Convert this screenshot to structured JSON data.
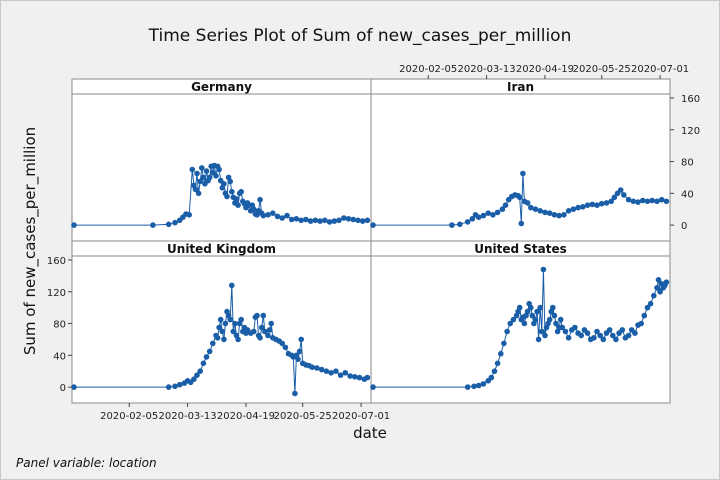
{
  "title": "Time Series Plot of Sum of new_cases_per_million",
  "footnote": "Panel variable: location",
  "colors": {
    "series": "#1a5ea8",
    "background": "#f0f0f0",
    "panel": "#ffffff",
    "strip": "#ffffff"
  },
  "chart_data": {
    "type": "line",
    "xlabel": "date",
    "ylabel": "Sum of new_cases_per_million",
    "x_range": [
      "2020-01-01",
      "2020-07-06"
    ],
    "x_ticks": [
      "2020-02-05",
      "2020-03-13",
      "2020-04-19",
      "2020-05-25",
      "2020-07-01"
    ],
    "ylim": [
      -20,
      165
    ],
    "y_ticks": [
      0,
      40,
      80,
      120,
      160
    ],
    "grid": false,
    "markers": true,
    "panels": [
      {
        "name": "Germany",
        "series": [
          [
            "2020-01-01",
            0
          ],
          [
            "2020-02-20",
            0
          ],
          [
            "2020-03-01",
            1
          ],
          [
            "2020-03-05",
            3
          ],
          [
            "2020-03-08",
            6
          ],
          [
            "2020-03-10",
            10
          ],
          [
            "2020-03-12",
            14
          ],
          [
            "2020-03-14",
            13
          ],
          [
            "2020-03-16",
            70
          ],
          [
            "2020-03-17",
            50
          ],
          [
            "2020-03-18",
            45
          ],
          [
            "2020-03-19",
            65
          ],
          [
            "2020-03-20",
            40
          ],
          [
            "2020-03-21",
            55
          ],
          [
            "2020-03-22",
            72
          ],
          [
            "2020-03-23",
            60
          ],
          [
            "2020-03-24",
            52
          ],
          [
            "2020-03-25",
            68
          ],
          [
            "2020-03-26",
            56
          ],
          [
            "2020-03-27",
            60
          ],
          [
            "2020-03-28",
            74
          ],
          [
            "2020-03-29",
            66
          ],
          [
            "2020-03-30",
            75
          ],
          [
            "2020-03-31",
            62
          ],
          [
            "2020-04-01",
            74
          ],
          [
            "2020-04-02",
            70
          ],
          [
            "2020-04-03",
            56
          ],
          [
            "2020-04-04",
            47
          ],
          [
            "2020-04-05",
            52
          ],
          [
            "2020-04-06",
            40
          ],
          [
            "2020-04-07",
            36
          ],
          [
            "2020-04-08",
            60
          ],
          [
            "2020-04-09",
            55
          ],
          [
            "2020-04-10",
            42
          ],
          [
            "2020-04-11",
            35
          ],
          [
            "2020-04-12",
            28
          ],
          [
            "2020-04-13",
            33
          ],
          [
            "2020-04-14",
            25
          ],
          [
            "2020-04-15",
            40
          ],
          [
            "2020-04-16",
            42
          ],
          [
            "2020-04-17",
            30
          ],
          [
            "2020-04-18",
            27
          ],
          [
            "2020-04-19",
            22
          ],
          [
            "2020-04-20",
            28
          ],
          [
            "2020-04-21",
            25
          ],
          [
            "2020-04-22",
            18
          ],
          [
            "2020-04-23",
            25
          ],
          [
            "2020-04-24",
            20
          ],
          [
            "2020-04-25",
            14
          ],
          [
            "2020-04-26",
            13
          ],
          [
            "2020-04-27",
            18
          ],
          [
            "2020-04-28",
            32
          ],
          [
            "2020-04-29",
            15
          ],
          [
            "2020-04-30",
            12
          ],
          [
            "2020-05-03",
            13
          ],
          [
            "2020-05-06",
            15
          ],
          [
            "2020-05-09",
            11
          ],
          [
            "2020-05-12",
            9
          ],
          [
            "2020-05-15",
            12
          ],
          [
            "2020-05-18",
            7
          ],
          [
            "2020-05-21",
            8
          ],
          [
            "2020-05-24",
            6
          ],
          [
            "2020-05-27",
            7
          ],
          [
            "2020-05-30",
            5
          ],
          [
            "2020-06-02",
            6
          ],
          [
            "2020-06-05",
            5
          ],
          [
            "2020-06-08",
            6
          ],
          [
            "2020-06-11",
            4
          ],
          [
            "2020-06-14",
            5
          ],
          [
            "2020-06-17",
            6
          ],
          [
            "2020-06-20",
            9
          ],
          [
            "2020-06-23",
            8
          ],
          [
            "2020-06-26",
            7
          ],
          [
            "2020-06-29",
            6
          ],
          [
            "2020-07-02",
            5
          ],
          [
            "2020-07-05",
            6
          ]
        ]
      },
      {
        "name": "Iran",
        "series": [
          [
            "2020-01-01",
            0
          ],
          [
            "2020-02-20",
            0
          ],
          [
            "2020-02-25",
            1
          ],
          [
            "2020-03-01",
            4
          ],
          [
            "2020-03-04",
            8
          ],
          [
            "2020-03-06",
            13
          ],
          [
            "2020-03-08",
            10
          ],
          [
            "2020-03-11",
            12
          ],
          [
            "2020-03-14",
            15
          ],
          [
            "2020-03-17",
            13
          ],
          [
            "2020-03-20",
            16
          ],
          [
            "2020-03-23",
            20
          ],
          [
            "2020-03-25",
            25
          ],
          [
            "2020-03-27",
            32
          ],
          [
            "2020-03-29",
            36
          ],
          [
            "2020-03-31",
            38
          ],
          [
            "2020-04-02",
            37
          ],
          [
            "2020-04-03",
            35
          ],
          [
            "2020-04-04",
            2
          ],
          [
            "2020-04-05",
            65
          ],
          [
            "2020-04-06",
            30
          ],
          [
            "2020-04-08",
            28
          ],
          [
            "2020-04-10",
            22
          ],
          [
            "2020-04-13",
            20
          ],
          [
            "2020-04-16",
            18
          ],
          [
            "2020-04-19",
            16
          ],
          [
            "2020-04-22",
            15
          ],
          [
            "2020-04-25",
            13
          ],
          [
            "2020-04-28",
            12
          ],
          [
            "2020-05-01",
            13
          ],
          [
            "2020-05-04",
            18
          ],
          [
            "2020-05-07",
            20
          ],
          [
            "2020-05-10",
            22
          ],
          [
            "2020-05-13",
            23
          ],
          [
            "2020-05-16",
            25
          ],
          [
            "2020-05-19",
            26
          ],
          [
            "2020-05-22",
            25
          ],
          [
            "2020-05-25",
            27
          ],
          [
            "2020-05-28",
            28
          ],
          [
            "2020-05-31",
            30
          ],
          [
            "2020-06-02",
            35
          ],
          [
            "2020-06-04",
            40
          ],
          [
            "2020-06-06",
            44
          ],
          [
            "2020-06-08",
            38
          ],
          [
            "2020-06-11",
            32
          ],
          [
            "2020-06-14",
            30
          ],
          [
            "2020-06-17",
            29
          ],
          [
            "2020-06-20",
            31
          ],
          [
            "2020-06-23",
            30
          ],
          [
            "2020-06-26",
            31
          ],
          [
            "2020-06-29",
            30
          ],
          [
            "2020-07-02",
            32
          ],
          [
            "2020-07-05",
            30
          ]
        ]
      },
      {
        "name": "United Kingdom",
        "series": [
          [
            "2020-01-01",
            0
          ],
          [
            "2020-03-01",
            0
          ],
          [
            "2020-03-05",
            1
          ],
          [
            "2020-03-08",
            3
          ],
          [
            "2020-03-11",
            5
          ],
          [
            "2020-03-13",
            8
          ],
          [
            "2020-03-15",
            6
          ],
          [
            "2020-03-17",
            10
          ],
          [
            "2020-03-19",
            15
          ],
          [
            "2020-03-21",
            20
          ],
          [
            "2020-03-23",
            30
          ],
          [
            "2020-03-25",
            38
          ],
          [
            "2020-03-27",
            45
          ],
          [
            "2020-03-29",
            55
          ],
          [
            "2020-03-31",
            65
          ],
          [
            "2020-04-01",
            62
          ],
          [
            "2020-04-02",
            75
          ],
          [
            "2020-04-03",
            85
          ],
          [
            "2020-04-04",
            70
          ],
          [
            "2020-04-05",
            60
          ],
          [
            "2020-04-06",
            80
          ],
          [
            "2020-04-07",
            95
          ],
          [
            "2020-04-08",
            90
          ],
          [
            "2020-04-09",
            85
          ],
          [
            "2020-04-10",
            128
          ],
          [
            "2020-04-11",
            70
          ],
          [
            "2020-04-12",
            80
          ],
          [
            "2020-04-13",
            65
          ],
          [
            "2020-04-14",
            60
          ],
          [
            "2020-04-15",
            80
          ],
          [
            "2020-04-16",
            85
          ],
          [
            "2020-04-17",
            70
          ],
          [
            "2020-04-18",
            75
          ],
          [
            "2020-04-19",
            68
          ],
          [
            "2020-04-20",
            72
          ],
          [
            "2020-04-22",
            68
          ],
          [
            "2020-04-24",
            70
          ],
          [
            "2020-04-25",
            88
          ],
          [
            "2020-04-26",
            90
          ],
          [
            "2020-04-27",
            65
          ],
          [
            "2020-04-28",
            62
          ],
          [
            "2020-04-29",
            75
          ],
          [
            "2020-04-30",
            90
          ],
          [
            "2020-05-01",
            70
          ],
          [
            "2020-05-03",
            65
          ],
          [
            "2020-05-04",
            72
          ],
          [
            "2020-05-05",
            80
          ],
          [
            "2020-05-06",
            62
          ],
          [
            "2020-05-08",
            60
          ],
          [
            "2020-05-10",
            58
          ],
          [
            "2020-05-12",
            55
          ],
          [
            "2020-05-14",
            50
          ],
          [
            "2020-05-16",
            42
          ],
          [
            "2020-05-18",
            40
          ],
          [
            "2020-05-19",
            38
          ],
          [
            "2020-05-20",
            -8
          ],
          [
            "2020-05-21",
            40
          ],
          [
            "2020-05-22",
            35
          ],
          [
            "2020-05-23",
            45
          ],
          [
            "2020-05-24",
            60
          ],
          [
            "2020-05-25",
            30
          ],
          [
            "2020-05-27",
            28
          ],
          [
            "2020-05-29",
            27
          ],
          [
            "2020-05-31",
            25
          ],
          [
            "2020-06-03",
            24
          ],
          [
            "2020-06-06",
            22
          ],
          [
            "2020-06-09",
            20
          ],
          [
            "2020-06-12",
            18
          ],
          [
            "2020-06-15",
            20
          ],
          [
            "2020-06-18",
            15
          ],
          [
            "2020-06-21",
            18
          ],
          [
            "2020-06-24",
            14
          ],
          [
            "2020-06-27",
            13
          ],
          [
            "2020-06-30",
            12
          ],
          [
            "2020-07-03",
            10
          ],
          [
            "2020-07-05",
            12
          ]
        ]
      },
      {
        "name": "United States",
        "series": [
          [
            "2020-01-01",
            0
          ],
          [
            "2020-03-01",
            0
          ],
          [
            "2020-03-05",
            1
          ],
          [
            "2020-03-08",
            2
          ],
          [
            "2020-03-11",
            4
          ],
          [
            "2020-03-14",
            8
          ],
          [
            "2020-03-16",
            12
          ],
          [
            "2020-03-18",
            20
          ],
          [
            "2020-03-20",
            30
          ],
          [
            "2020-03-22",
            42
          ],
          [
            "2020-03-24",
            55
          ],
          [
            "2020-03-26",
            70
          ],
          [
            "2020-03-28",
            80
          ],
          [
            "2020-03-30",
            85
          ],
          [
            "2020-04-01",
            90
          ],
          [
            "2020-04-02",
            95
          ],
          [
            "2020-04-03",
            100
          ],
          [
            "2020-04-04",
            85
          ],
          [
            "2020-04-05",
            88
          ],
          [
            "2020-04-06",
            80
          ],
          [
            "2020-04-07",
            90
          ],
          [
            "2020-04-08",
            95
          ],
          [
            "2020-04-09",
            105
          ],
          [
            "2020-04-10",
            100
          ],
          [
            "2020-04-11",
            90
          ],
          [
            "2020-04-12",
            80
          ],
          [
            "2020-04-13",
            85
          ],
          [
            "2020-04-14",
            95
          ],
          [
            "2020-04-15",
            60
          ],
          [
            "2020-04-16",
            100
          ],
          [
            "2020-04-17",
            70
          ],
          [
            "2020-04-18",
            148
          ],
          [
            "2020-04-19",
            65
          ],
          [
            "2020-04-20",
            75
          ],
          [
            "2020-04-21",
            80
          ],
          [
            "2020-04-22",
            85
          ],
          [
            "2020-04-23",
            95
          ],
          [
            "2020-04-24",
            100
          ],
          [
            "2020-04-25",
            90
          ],
          [
            "2020-04-26",
            80
          ],
          [
            "2020-04-27",
            70
          ],
          [
            "2020-04-28",
            75
          ],
          [
            "2020-04-29",
            85
          ],
          [
            "2020-04-30",
            75
          ],
          [
            "2020-05-02",
            70
          ],
          [
            "2020-05-04",
            62
          ],
          [
            "2020-05-06",
            72
          ],
          [
            "2020-05-08",
            75
          ],
          [
            "2020-05-10",
            68
          ],
          [
            "2020-05-12",
            65
          ],
          [
            "2020-05-14",
            72
          ],
          [
            "2020-05-16",
            68
          ],
          [
            "2020-05-18",
            60
          ],
          [
            "2020-05-20",
            62
          ],
          [
            "2020-05-22",
            70
          ],
          [
            "2020-05-24",
            65
          ],
          [
            "2020-05-26",
            60
          ],
          [
            "2020-05-28",
            68
          ],
          [
            "2020-05-30",
            72
          ],
          [
            "2020-06-01",
            65
          ],
          [
            "2020-06-03",
            60
          ],
          [
            "2020-06-05",
            68
          ],
          [
            "2020-06-07",
            72
          ],
          [
            "2020-06-09",
            62
          ],
          [
            "2020-06-11",
            65
          ],
          [
            "2020-06-13",
            72
          ],
          [
            "2020-06-15",
            68
          ],
          [
            "2020-06-17",
            78
          ],
          [
            "2020-06-19",
            80
          ],
          [
            "2020-06-21",
            90
          ],
          [
            "2020-06-23",
            100
          ],
          [
            "2020-06-25",
            105
          ],
          [
            "2020-06-27",
            115
          ],
          [
            "2020-06-29",
            125
          ],
          [
            "2020-06-30",
            135
          ],
          [
            "2020-07-01",
            120
          ],
          [
            "2020-07-02",
            130
          ],
          [
            "2020-07-03",
            125
          ],
          [
            "2020-07-04",
            128
          ],
          [
            "2020-07-05",
            132
          ]
        ]
      }
    ]
  }
}
